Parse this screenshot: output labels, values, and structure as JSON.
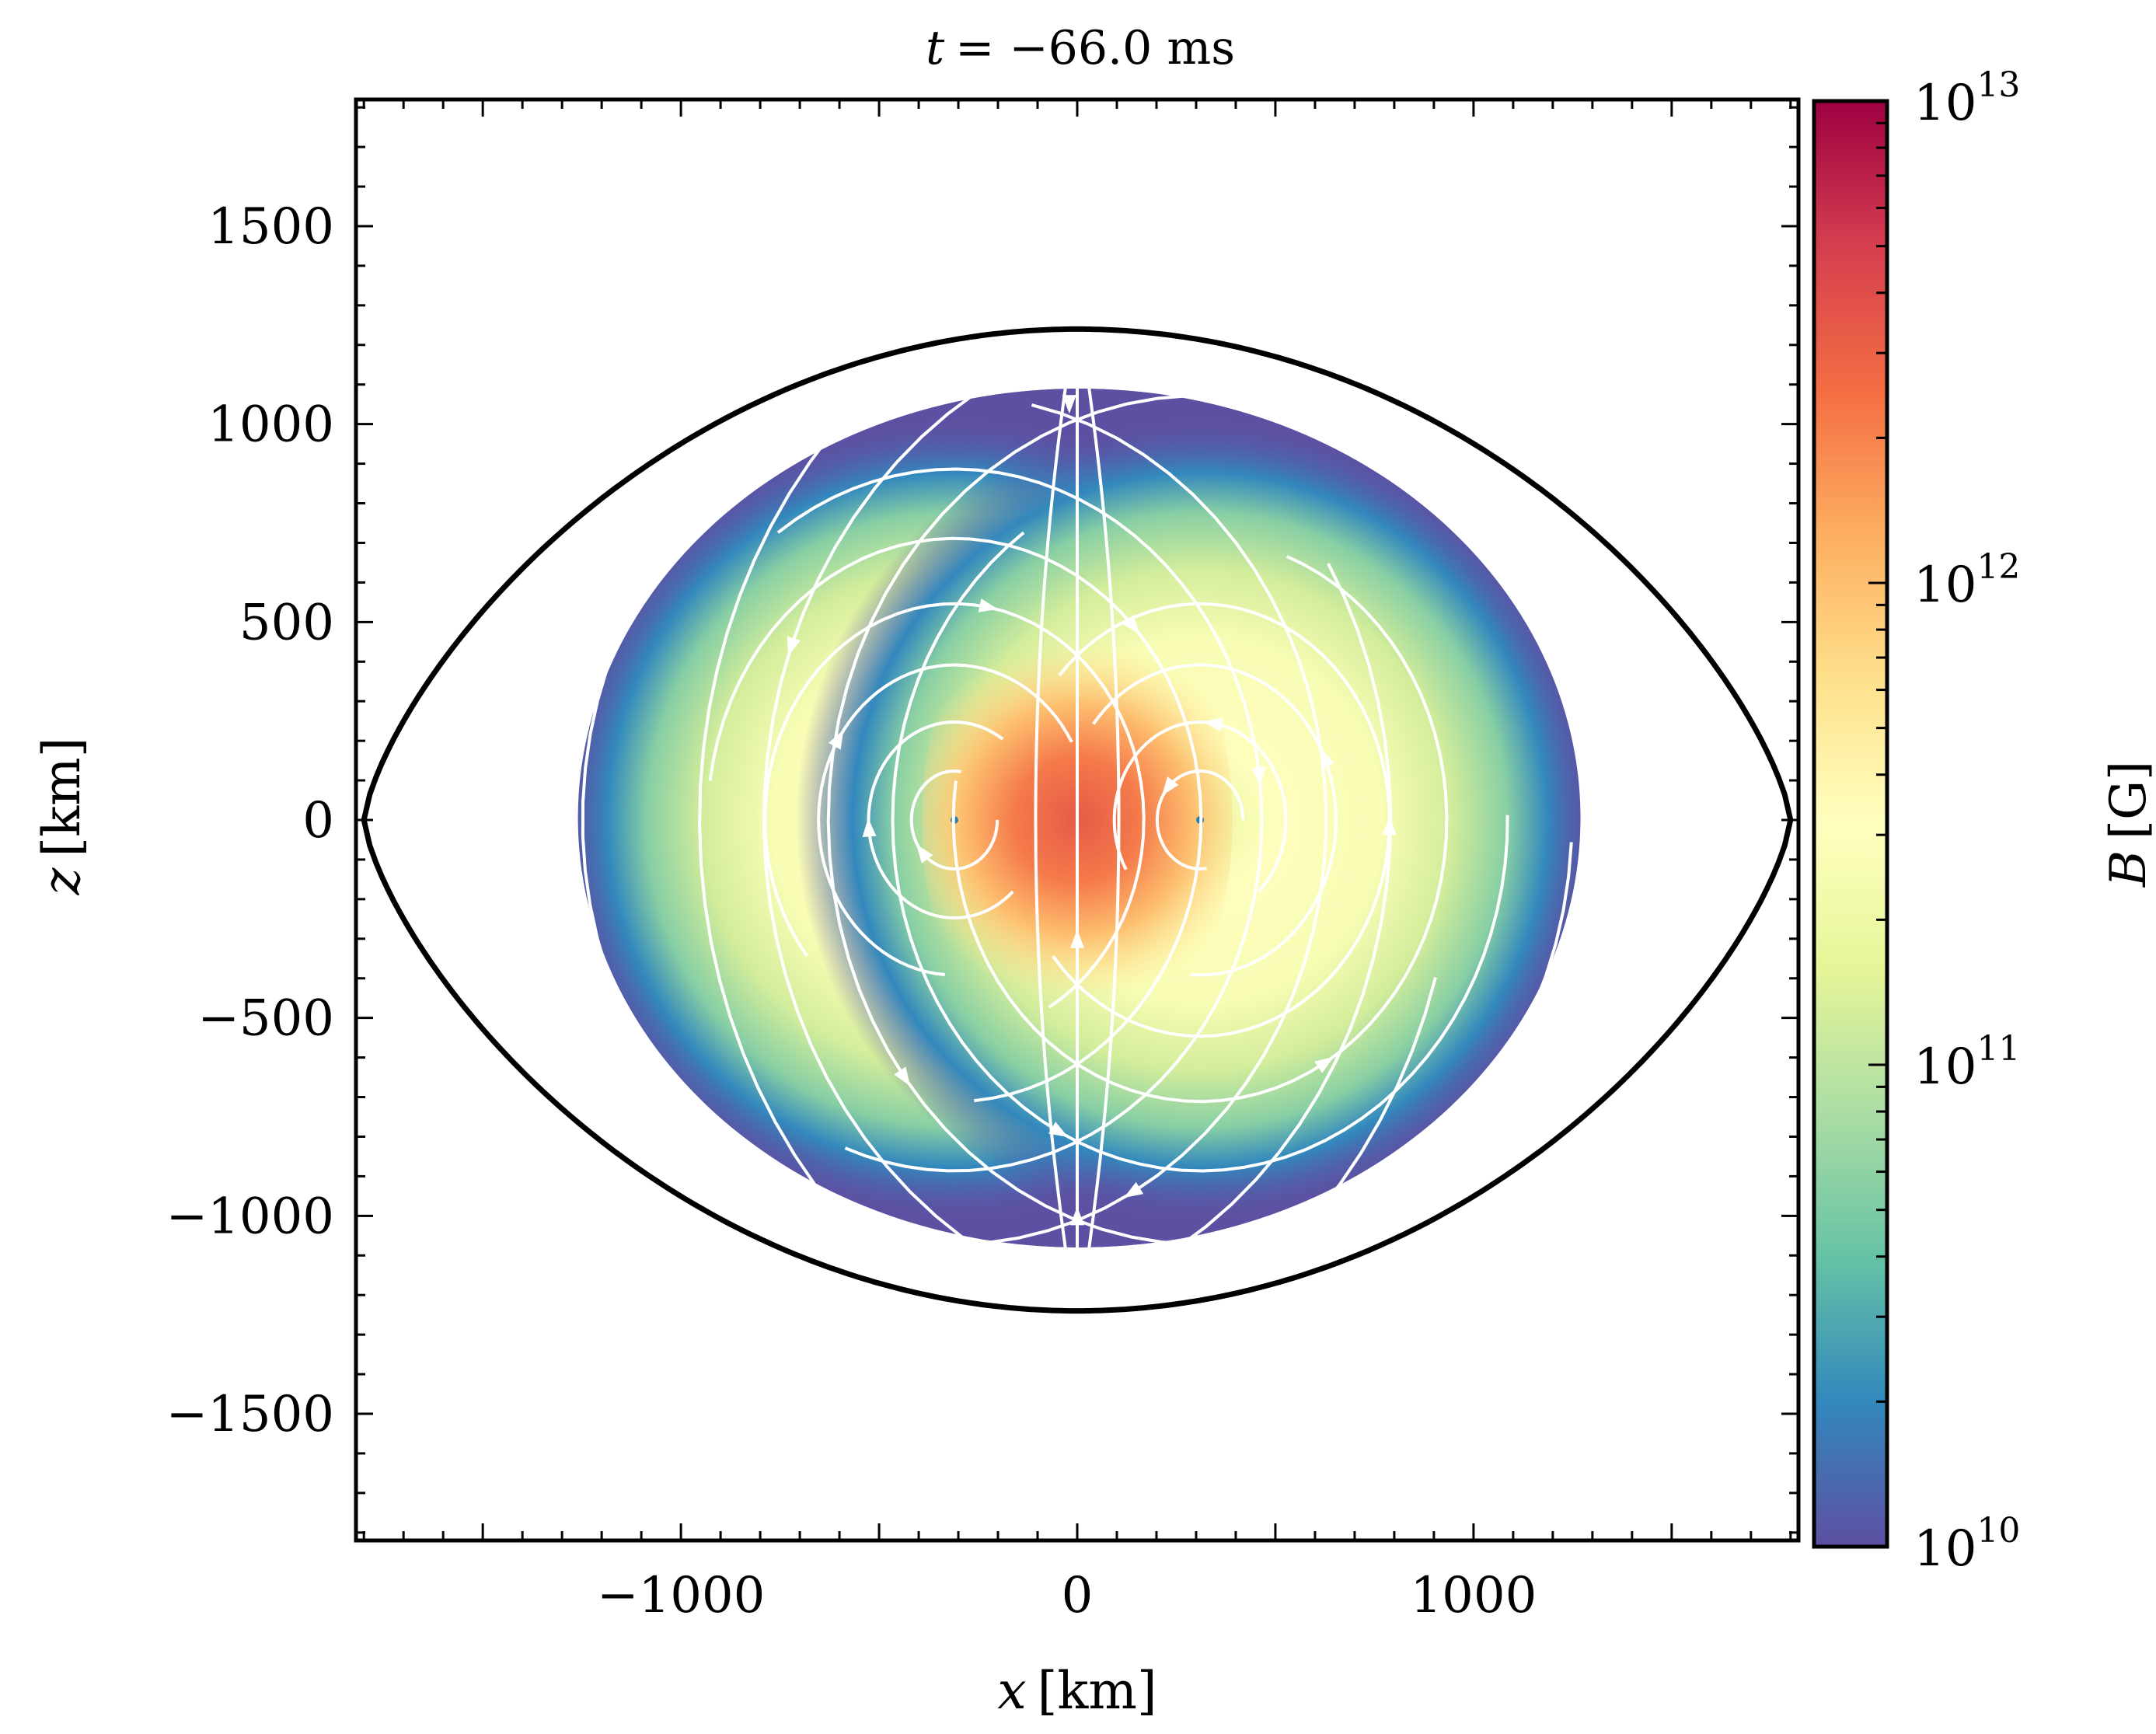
{
  "chart_data": {
    "type": "heatmap",
    "title_prefix": "t",
    "title_value": "= −66.0 ms",
    "xlabel_var": "x",
    "xlabel_unit": "[km]",
    "ylabel_var": "z",
    "ylabel_unit": "[km]",
    "xlim": [
      -1820,
      1820
    ],
    "ylim": [
      -1820,
      1820
    ],
    "xticks": [
      -1000,
      0,
      1000
    ],
    "xtick_labels": [
      "−1000",
      "0",
      "1000"
    ],
    "yticks": [
      -1500,
      -1000,
      -500,
      0,
      500,
      1000,
      1500
    ],
    "ytick_labels": [
      "−1500",
      "−1000",
      "−500",
      "0",
      "500",
      "1000",
      "1500"
    ],
    "outer_contour": {
      "half_width_km": 1800,
      "half_height_km": 1240
    },
    "field_region": {
      "x_range_km": [
        -1260,
        1270
      ],
      "z_range_km": [
        -1080,
        1090
      ]
    },
    "field_loop_centers_km": [
      [
        -310,
        0
      ],
      [
        310,
        0
      ]
    ],
    "colorbar": {
      "label_var": "B",
      "label_unit": "[G]",
      "scale": "log",
      "min": 10000000000.0,
      "max": 10000000000000.0,
      "tick_base": "10",
      "tick_exponents": [
        "10",
        "11",
        "12",
        "13"
      ],
      "colormap": "Spectral_r"
    },
    "streamline_color": "#ffffff"
  }
}
